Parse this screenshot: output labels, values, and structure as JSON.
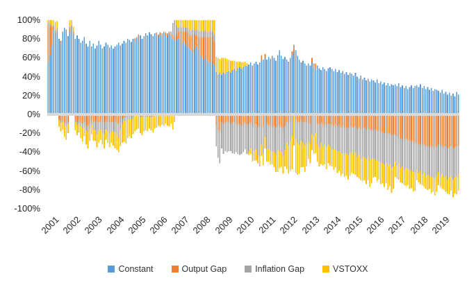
{
  "chart_data": {
    "type": "bar",
    "stacked": true,
    "orientation": "vertical",
    "frequency": "monthly",
    "x_start": "2001-01",
    "x_end": "2019-12",
    "grid": false,
    "legend_position": "bottom",
    "ylim": [
      -100,
      100
    ],
    "y_tick_labels": [
      "100%",
      "80%",
      "60%",
      "40%",
      "20%",
      "0%",
      "-20%",
      "-40%",
      "-60%",
      "-80%",
      "-100%"
    ],
    "year_labels": [
      "2001",
      "2002",
      "2003",
      "2004",
      "2005",
      "2006",
      "2007",
      "2008",
      "2009",
      "2010",
      "2011",
      "2012",
      "2013",
      "2014",
      "2015",
      "2016",
      "2017",
      "2018",
      "2019"
    ],
    "axis_text_color": "#262626",
    "zero_line_color": "#D9D9D9",
    "series": [
      {
        "name": "Constant",
        "color": "#5B9BD5",
        "values": [
          55,
          62,
          73,
          90,
          85,
          88,
          80,
          78,
          88,
          92,
          90,
          83,
          88,
          92,
          85,
          80,
          84,
          80,
          76,
          78,
          82,
          75,
          72,
          78,
          72,
          75,
          70,
          73,
          78,
          74,
          70,
          72,
          76,
          74,
          71,
          73,
          70,
          72,
          74,
          76,
          73,
          75,
          78,
          76,
          80,
          79,
          77,
          80,
          78,
          80,
          82,
          84,
          80,
          83,
          86,
          84,
          87,
          85,
          83,
          86,
          84,
          82,
          85,
          83,
          86,
          84,
          82,
          85,
          83,
          80,
          78,
          79,
          80,
          78,
          76,
          78,
          75,
          72,
          70,
          68,
          66,
          70,
          72,
          68,
          62,
          60,
          58,
          60,
          57,
          55,
          56,
          54,
          52,
          45,
          42,
          44,
          42,
          44,
          43,
          45,
          46,
          44,
          47,
          48,
          46,
          49,
          50,
          48,
          50,
          52,
          51,
          53,
          55,
          52,
          54,
          56,
          53,
          55,
          57,
          58,
          60,
          58,
          61,
          59,
          62,
          60,
          57,
          63,
          68,
          62,
          59,
          61,
          58,
          56,
          60,
          63,
          66,
          68,
          62,
          58,
          55,
          57,
          54,
          52,
          54,
          52,
          55,
          50,
          48,
          52,
          49,
          47,
          50,
          48,
          46,
          49,
          50,
          48,
          46,
          48,
          45,
          47,
          44,
          46,
          43,
          45,
          42,
          44,
          43,
          41,
          44,
          40,
          38,
          41,
          37,
          39,
          36,
          38,
          35,
          37,
          36,
          34,
          37,
          33,
          35,
          32,
          34,
          31,
          33,
          30,
          32,
          31,
          32,
          30,
          33,
          29,
          31,
          28,
          30,
          27,
          29,
          31,
          28,
          30,
          31,
          29,
          32,
          28,
          30,
          27,
          29,
          26,
          28,
          25,
          27,
          26,
          25,
          23,
          26,
          22,
          24,
          21,
          23,
          20,
          22,
          19,
          24,
          21
        ]
      },
      {
        "name": "Output Gap",
        "color": "#ED7D31",
        "values": [
          40,
          32,
          20,
          3,
          2,
          2,
          -5,
          -7,
          -6,
          -9,
          -10,
          -8,
          3,
          2,
          2,
          -6,
          -8,
          -7,
          -9,
          -10,
          -8,
          -11,
          -12,
          -10,
          -6,
          -8,
          -7,
          -9,
          -8,
          -7,
          -8,
          -9,
          -7,
          -8,
          -9,
          -8,
          -8,
          -7,
          -9,
          -10,
          -6,
          -4,
          -3,
          -3,
          -2,
          -2,
          -2,
          -2,
          2,
          1,
          2,
          -2,
          -2,
          -1,
          -2,
          -2,
          -1,
          -2,
          -2,
          -1,
          2,
          2,
          1,
          2,
          1,
          2,
          2,
          1,
          2,
          3,
          4,
          5,
          8,
          10,
          12,
          10,
          13,
          15,
          14,
          16,
          18,
          14,
          12,
          15,
          20,
          22,
          24,
          22,
          25,
          27,
          26,
          28,
          25,
          -12,
          -16,
          -18,
          -8,
          -10,
          -9,
          -7,
          -8,
          -10,
          -9,
          -8,
          -10,
          -11,
          -10,
          -12,
          -10,
          -9,
          -11,
          -10,
          -9,
          -12,
          -11,
          -10,
          -13,
          -12,
          6,
          -13,
          4,
          -10,
          -12,
          -11,
          -13,
          -12,
          -14,
          -12,
          -11,
          -13,
          -15,
          -12,
          -8,
          -9,
          -7,
          4,
          3,
          -6,
          -8,
          -9,
          -7,
          -8,
          -9,
          -8,
          -9,
          -10,
          5,
          4,
          6,
          -10,
          -11,
          -9,
          -12,
          -10,
          -11,
          -10,
          -10,
          -11,
          -12,
          -10,
          -13,
          -11,
          -14,
          -12,
          -13,
          -15,
          -14,
          -13,
          -13,
          -14,
          -12,
          -15,
          -14,
          -16,
          -15,
          -14,
          -16,
          -15,
          -17,
          -16,
          -17,
          -16,
          -18,
          -17,
          -19,
          -18,
          -20,
          -19,
          -21,
          -20,
          -22,
          -21,
          -22,
          -24,
          -23,
          -26,
          -25,
          -27,
          -26,
          -28,
          -27,
          -29,
          -28,
          -30,
          -30,
          -32,
          -31,
          -33,
          -32,
          -34,
          -33,
          -35,
          -34,
          -36,
          -35,
          -34,
          -32,
          -34,
          -33,
          -35,
          -34,
          -36,
          -35,
          -34,
          -36,
          -35,
          -34,
          -33
        ]
      },
      {
        "name": "Inflation Gap",
        "color": "#A5A5A5",
        "values": [
          2,
          2,
          2,
          1,
          2,
          1,
          -1,
          -2,
          -2,
          -3,
          -3,
          -2,
          2,
          1,
          1,
          -2,
          -3,
          -3,
          -4,
          -5,
          -4,
          -6,
          -7,
          -5,
          -5,
          -8,
          -10,
          -12,
          -10,
          -9,
          -11,
          -12,
          -9,
          -10,
          -12,
          -10,
          -10,
          -12,
          -13,
          -15,
          -10,
          -6,
          -4,
          -4,
          -3,
          -3,
          -3,
          -2,
          1,
          1,
          1,
          -1,
          -1,
          -1,
          -1,
          -1,
          -1,
          -1,
          -1,
          -1,
          1,
          1,
          1,
          1,
          1,
          1,
          2,
          2,
          3,
          14,
          18,
          10,
          4,
          5,
          4,
          5,
          4,
          5,
          6,
          5,
          6,
          5,
          6,
          6,
          6,
          7,
          6,
          7,
          6,
          6,
          7,
          6,
          8,
          -22,
          -30,
          -34,
          -28,
          -32,
          -30,
          -33,
          -31,
          -29,
          -32,
          -34,
          -30,
          -31,
          -33,
          -30,
          -30,
          -28,
          -31,
          -29,
          -27,
          -30,
          -28,
          -27,
          -30,
          -32,
          -32,
          -29,
          -24,
          -26,
          -25,
          -27,
          -26,
          -28,
          -27,
          -25,
          -28,
          -27,
          -29,
          -26,
          -22,
          -24,
          -21,
          -23,
          5,
          -20,
          -22,
          -24,
          -21,
          -22,
          -24,
          -22,
          -20,
          -22,
          -21,
          -23,
          -20,
          -22,
          -24,
          -21,
          -23,
          -22,
          -24,
          -22,
          -24,
          -26,
          -25,
          -27,
          -26,
          -28,
          -27,
          -29,
          -28,
          -27,
          -29,
          -28,
          -27,
          -29,
          -28,
          -30,
          -29,
          -31,
          -30,
          -32,
          -31,
          -30,
          -32,
          -31,
          -30,
          -32,
          -31,
          -33,
          -32,
          -34,
          -33,
          -32,
          -34,
          -33,
          -35,
          -34,
          -28,
          -30,
          -29,
          -31,
          -30,
          -32,
          -31,
          -30,
          -32,
          -31,
          -33,
          -32,
          -28,
          -30,
          -29,
          -31,
          -30,
          -32,
          -31,
          -30,
          -32,
          -31,
          -33,
          -32,
          -29,
          -31,
          -30,
          -32,
          -31,
          -33,
          -32,
          -31,
          -33,
          -32,
          -31,
          -30
        ]
      },
      {
        "name": "VSTOXX",
        "color": "#FFC000",
        "values": [
          3,
          4,
          5,
          6,
          9,
          8,
          -7,
          -9,
          -8,
          -12,
          -14,
          -10,
          7,
          6,
          5,
          -9,
          -11,
          -9,
          -12,
          -14,
          -11,
          -15,
          -17,
          -13,
          -10,
          -12,
          -11,
          -14,
          -12,
          -11,
          -13,
          -15,
          -11,
          -12,
          -14,
          -12,
          -15,
          -17,
          -16,
          -15,
          -18,
          -20,
          -22,
          -24,
          -20,
          -18,
          -20,
          -17,
          -18,
          -16,
          -15,
          -17,
          -19,
          -16,
          -14,
          -15,
          -13,
          -14,
          -16,
          -13,
          -14,
          -12,
          -13,
          -11,
          -12,
          -10,
          -12,
          -13,
          -10,
          -16,
          -8,
          6,
          8,
          7,
          8,
          7,
          8,
          8,
          10,
          11,
          10,
          11,
          10,
          11,
          12,
          11,
          12,
          11,
          12,
          12,
          11,
          12,
          15,
          16,
          18,
          15,
          18,
          16,
          17,
          14,
          12,
          13,
          10,
          9,
          10,
          7,
          6,
          7,
          5,
          4,
          3,
          -4,
          -6,
          -8,
          -10,
          -12,
          -9,
          -11,
          -12,
          -12,
          -12,
          -14,
          -13,
          -15,
          -14,
          -16,
          -20,
          -24,
          -18,
          -16,
          -19,
          -17,
          -28,
          -30,
          -32,
          -35,
          -33,
          -36,
          -34,
          -30,
          -28,
          -26,
          -28,
          -25,
          -18,
          -20,
          -17,
          -19,
          -21,
          -18,
          -20,
          -23,
          -19,
          -21,
          -23,
          -20,
          -20,
          -18,
          -22,
          -19,
          -23,
          -21,
          -24,
          -22,
          -25,
          -23,
          -26,
          -24,
          -22,
          -20,
          -24,
          -21,
          -25,
          -23,
          -26,
          -24,
          -27,
          -25,
          -28,
          -26,
          -20,
          -18,
          -22,
          -19,
          -23,
          -21,
          -24,
          -22,
          -25,
          -23,
          -26,
          -24,
          -16,
          -14,
          -17,
          -15,
          -18,
          -16,
          -19,
          -17,
          -20,
          -18,
          -21,
          -19,
          -12,
          -10,
          -14,
          -11,
          -15,
          -13,
          -16,
          -14,
          -17,
          -15,
          -18,
          -16,
          -14,
          -12,
          -16,
          -13,
          -17,
          -15,
          -18,
          -16,
          -19,
          -17,
          -20,
          -18
        ]
      }
    ]
  }
}
